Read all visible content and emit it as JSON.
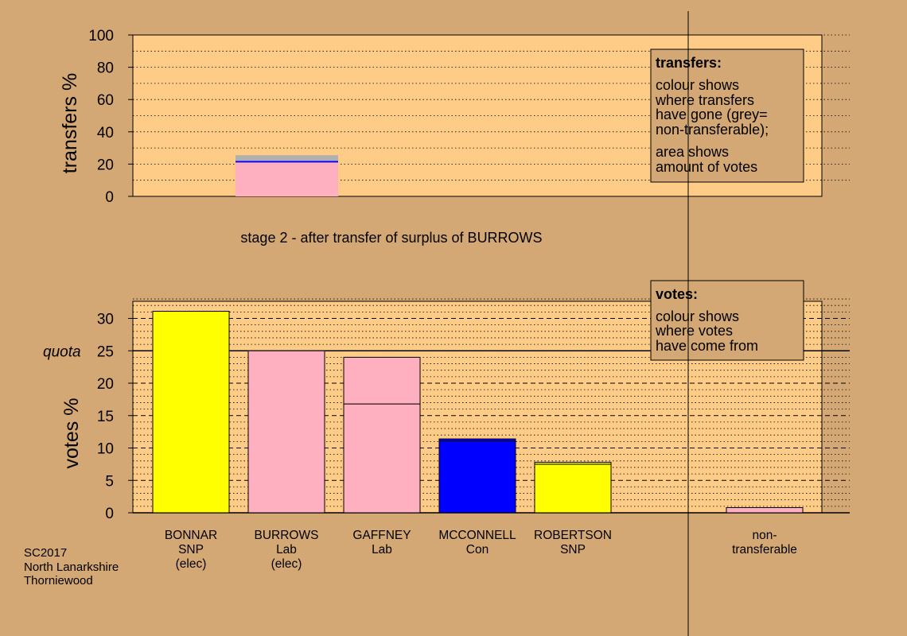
{
  "colors": {
    "background": "#d4a874",
    "panel": "#ffcc88",
    "Lab": "#ffb0c0",
    "SNP": "#ffff00",
    "Con": "#0000ff",
    "non_transferable": "#b0b0b0"
  },
  "footer": [
    "SC2017",
    "North Lanarkshire",
    "Thorniewood"
  ],
  "stage_label": "stage 2 - after transfer of surplus of BURROWS",
  "transfers_box": {
    "title": "transfers:",
    "lines": [
      "colour shows",
      "where transfers",
      "have gone (grey=",
      "non-transferable);",
      "area shows",
      "amount of votes"
    ]
  },
  "votes_box": {
    "title": "votes:",
    "lines": [
      "colour shows",
      "where votes",
      "have come from"
    ]
  },
  "chart_data": [
    {
      "type": "bar",
      "title": "",
      "ylabel": "transfers %",
      "ylim": [
        0,
        100
      ],
      "yticks": [
        0,
        20,
        40,
        60,
        80,
        100
      ],
      "categories": [
        "BURROWS"
      ],
      "segments": [
        {
          "party": "Lab",
          "value": 21.0
        },
        {
          "party": "Con",
          "value": 1.0
        },
        {
          "party": "non_transferable",
          "value": 3.5
        }
      ]
    },
    {
      "type": "bar",
      "ylabel": "votes %",
      "ylim": [
        0,
        33
      ],
      "yticks": [
        0,
        5,
        10,
        15,
        20,
        25,
        30
      ],
      "quota": {
        "label": "quota",
        "value": 25.0
      },
      "categories": [
        {
          "lines": [
            "BONNAR",
            "SNP",
            "(elec)"
          ]
        },
        {
          "lines": [
            "BURROWS",
            "Lab",
            "(elec)"
          ]
        },
        {
          "lines": [
            "GAFFNEY",
            "Lab"
          ]
        },
        {
          "lines": [
            "MCCONNELL",
            "Con"
          ]
        },
        {
          "lines": [
            "ROBERTSON",
            "SNP"
          ]
        },
        {
          "lines": [
            "non-",
            "transferable"
          ]
        }
      ],
      "stacks": [
        [
          {
            "party": "SNP",
            "value": 31.1
          }
        ],
        [
          {
            "party": "Lab",
            "value": 25.0
          }
        ],
        [
          {
            "party": "Lab",
            "value": 16.8
          },
          {
            "party": "Lab",
            "value": 7.2
          }
        ],
        [
          {
            "party": "Con",
            "value": 11.1
          },
          {
            "party": "Con",
            "value": 0.3
          }
        ],
        [
          {
            "party": "SNP",
            "value": 7.5
          },
          {
            "party": "SNP",
            "value": 0.3
          }
        ],
        [
          {
            "party": "Lab",
            "value": 0.8
          }
        ]
      ]
    }
  ]
}
